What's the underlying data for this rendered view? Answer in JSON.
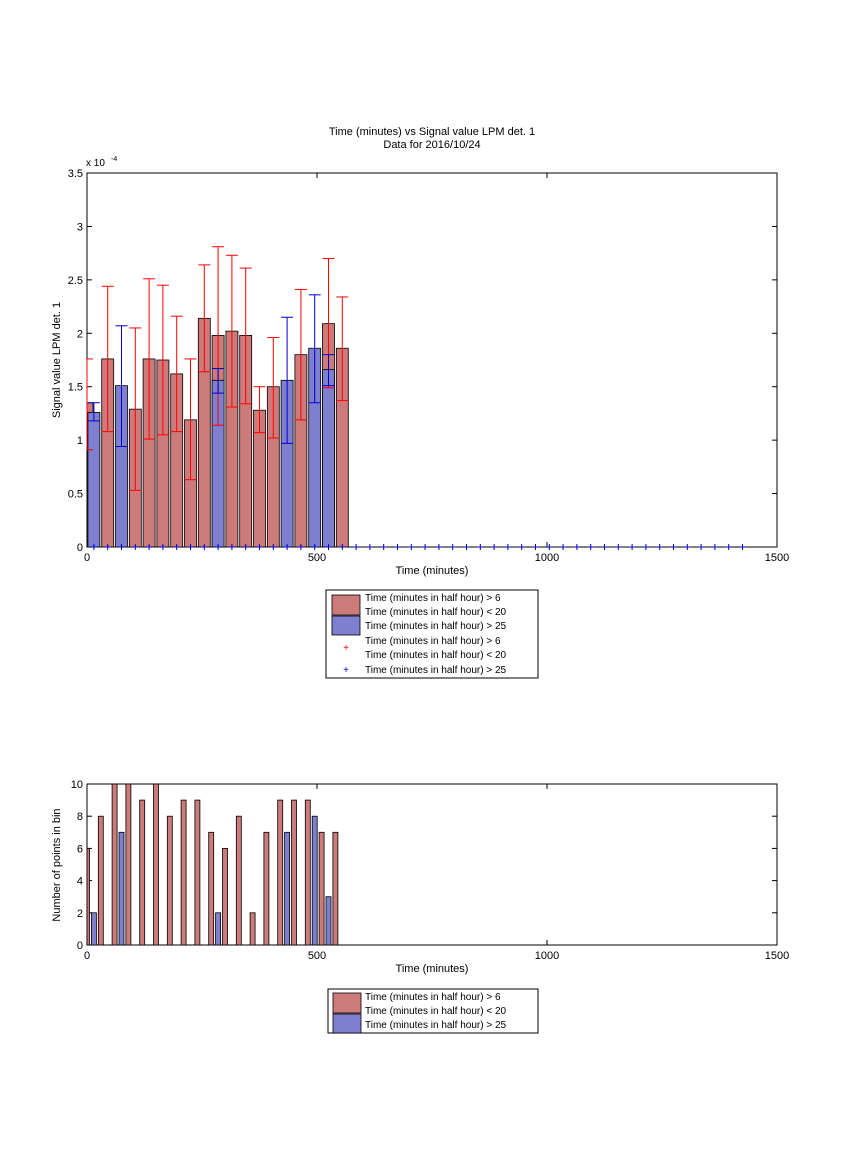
{
  "colors": {
    "red_bar": "#cc7a7a",
    "blue_bar": "#7f7fcf",
    "red_err": "#ff0000",
    "blue_err": "#0000cc",
    "axis": "#000000"
  },
  "chart_data": [
    {
      "type": "bar",
      "title": "Time (minutes) vs Signal value LPM det. 1",
      "subtitle": "Data for 2016/10/24",
      "xlabel": "Time (minutes)",
      "ylabel": "Signal value LPM det. 1",
      "exponent_label": "x 10",
      "exponent_power": "-4",
      "xlim": [
        0,
        1500
      ],
      "ylim": [
        0,
        3.5
      ],
      "xticks": [
        "0",
        "500",
        "1000",
        "1500"
      ],
      "yticks": [
        "0",
        "0.5",
        "1",
        "1.5",
        "2",
        "2.5",
        "3",
        "3.5"
      ],
      "series": [
        {
          "name": "Time (minutes in half hour) > 6\nTime (minutes in half hour) < 20",
          "color": "#cc7a7a",
          "x": [
            0,
            45,
            105,
            135,
            165,
            195,
            225,
            255,
            285,
            315,
            345,
            375,
            405,
            465,
            525,
            555
          ],
          "values": [
            1.35,
            1.76,
            1.29,
            1.76,
            1.75,
            1.62,
            1.19,
            2.14,
            1.98,
            2.02,
            1.98,
            1.28,
            1.5,
            1.8,
            2.09,
            1.86
          ],
          "err_low": [
            0.91,
            1.08,
            0.53,
            1.01,
            1.05,
            1.08,
            0.63,
            1.64,
            1.14,
            1.31,
            1.34,
            1.07,
            1.02,
            1.19,
            1.49,
            1.37
          ],
          "err_high": [
            1.76,
            2.44,
            2.05,
            2.51,
            2.45,
            2.16,
            1.76,
            2.64,
            2.81,
            2.73,
            2.61,
            1.5,
            1.96,
            2.41,
            2.7,
            2.34
          ]
        },
        {
          "name": "Time (minutes in half hour) > 25",
          "color": "#7f7fcf",
          "x": [
            15,
            75,
            285,
            435,
            495,
            525
          ],
          "values": [
            1.26,
            1.51,
            1.56,
            1.56,
            1.86,
            1.66
          ],
          "err_low": [
            1.18,
            0.94,
            1.44,
            0.97,
            1.35,
            1.51
          ],
          "err_high": [
            1.35,
            2.07,
            1.67,
            2.15,
            2.36,
            1.8
          ]
        }
      ],
      "markers_x": [
        15,
        45,
        75,
        105,
        135,
        165,
        195,
        225,
        255,
        285,
        315,
        345,
        375,
        405,
        435,
        465,
        495,
        525,
        555,
        585,
        615,
        645,
        675,
        705,
        735,
        765,
        795,
        825,
        855,
        885,
        915,
        945,
        975,
        1005,
        1035,
        1065,
        1095,
        1125,
        1155,
        1185,
        1215,
        1245,
        1275,
        1305,
        1335,
        1365,
        1395,
        1425
      ],
      "legend": {
        "placement": "below",
        "entries": [
          "Time (minutes in half hour) > 6",
          "Time (minutes in half hour) < 20",
          "Time (minutes in half hour) > 25",
          "Time (minutes in half hour) > 6",
          "Time (minutes in half hour) < 20",
          "Time (minutes in half hour) > 25"
        ]
      }
    },
    {
      "type": "bar",
      "xlabel": "Time (minutes)",
      "ylabel": "Number of points in bin",
      "xlim": [
        0,
        1500
      ],
      "ylim": [
        0,
        10
      ],
      "xticks": [
        "0",
        "500",
        "1000",
        "1500"
      ],
      "yticks": [
        "0",
        "2",
        "4",
        "6",
        "8",
        "10"
      ],
      "series": [
        {
          "name": "Time (minutes in half hour) > 6\nTime (minutes in half hour) < 20",
          "color": "#cc7a7a",
          "x": [
            0,
            30,
            60,
            90,
            120,
            150,
            180,
            210,
            240,
            270,
            300,
            330,
            360,
            390,
            420,
            450,
            480,
            510,
            540
          ],
          "values": [
            6,
            8,
            10,
            10,
            9,
            10,
            8,
            9,
            9,
            7,
            6,
            8,
            2,
            7,
            9,
            9,
            9,
            7,
            7
          ]
        },
        {
          "name": "Time (minutes in half hour) > 25",
          "color": "#7f7fcf",
          "x": [
            15,
            75,
            285,
            435,
            495,
            525
          ],
          "values": [
            2,
            7,
            2,
            7,
            8,
            3
          ]
        }
      ],
      "legend": {
        "placement": "below",
        "entries": [
          "Time (minutes in half hour) > 6",
          "Time (minutes in half hour) < 20",
          "Time (minutes in half hour) > 25"
        ]
      }
    }
  ]
}
